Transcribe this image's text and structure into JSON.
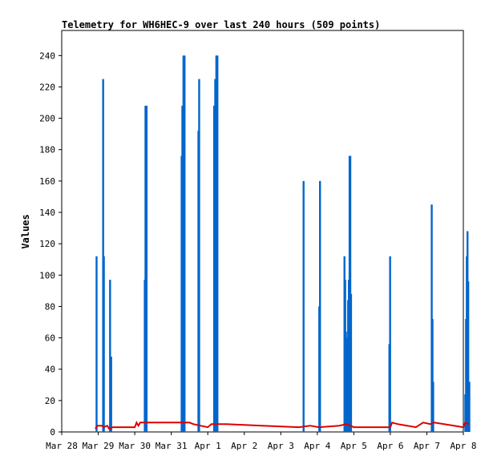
{
  "chart_data": {
    "type": "bar",
    "title": "Telemetry for WH6HEC-9 over last 240 hours (509 points)",
    "xlabel": "",
    "ylabel": "Values",
    "x_ticks": [
      "Mar 28",
      "Mar 29",
      "Mar 30",
      "Mar 31",
      "Apr 1",
      "Apr 2",
      "Apr 3",
      "Apr 4",
      "Apr 5",
      "Apr 6",
      "Apr 7",
      "Apr 8"
    ],
    "y_ticks": [
      "0",
      "20",
      "40",
      "60",
      "80",
      "100",
      "120",
      "140",
      "160",
      "180",
      "200",
      "220",
      "240"
    ],
    "xlim_days": [
      0,
      11
    ],
    "ylim": [
      0,
      256
    ],
    "grid": false,
    "legend": "none",
    "series": [
      {
        "kind": "bars",
        "color": "#0066cc",
        "points": [
          [
            0.95,
            112
          ],
          [
            1.13,
            225
          ],
          [
            1.15,
            112
          ],
          [
            1.32,
            97
          ],
          [
            1.34,
            48
          ],
          [
            1.35,
            48
          ],
          [
            2.27,
            97
          ],
          [
            2.29,
            208
          ],
          [
            2.32,
            208
          ],
          [
            3.28,
            176
          ],
          [
            3.3,
            208
          ],
          [
            3.33,
            240
          ],
          [
            3.36,
            240
          ],
          [
            3.74,
            192
          ],
          [
            3.76,
            225
          ],
          [
            4.17,
            208
          ],
          [
            4.2,
            225
          ],
          [
            4.23,
            240
          ],
          [
            4.26,
            240
          ],
          [
            6.62,
            160
          ],
          [
            7.05,
            80
          ],
          [
            7.07,
            160
          ],
          [
            7.74,
            112
          ],
          [
            7.76,
            97
          ],
          [
            7.78,
            64
          ],
          [
            7.8,
            60
          ],
          [
            7.82,
            36
          ],
          [
            7.84,
            84
          ],
          [
            7.86,
            97
          ],
          [
            7.88,
            176
          ],
          [
            7.9,
            176
          ],
          [
            7.92,
            88
          ],
          [
            8.97,
            56
          ],
          [
            8.99,
            112
          ],
          [
            10.13,
            145
          ],
          [
            10.15,
            72
          ],
          [
            10.17,
            32
          ],
          [
            11.05,
            24
          ],
          [
            11.07,
            72
          ],
          [
            11.09,
            112
          ],
          [
            11.11,
            128
          ],
          [
            11.13,
            96
          ],
          [
            11.16,
            32
          ]
        ]
      },
      {
        "kind": "line",
        "color": "#dd0000",
        "points": [
          [
            0.92,
            2
          ],
          [
            0.98,
            4
          ],
          [
            1.1,
            4
          ],
          [
            1.15,
            3
          ],
          [
            1.25,
            4
          ],
          [
            1.3,
            2
          ],
          [
            1.4,
            3
          ],
          [
            2.0,
            3
          ],
          [
            2.05,
            6
          ],
          [
            2.1,
            4
          ],
          [
            2.15,
            6
          ],
          [
            3.5,
            6
          ],
          [
            3.6,
            5
          ],
          [
            3.8,
            4
          ],
          [
            4.0,
            3
          ],
          [
            4.1,
            5
          ],
          [
            4.5,
            5
          ],
          [
            5.5,
            4
          ],
          [
            6.5,
            3
          ],
          [
            6.8,
            4
          ],
          [
            7.05,
            3
          ],
          [
            7.6,
            4
          ],
          [
            7.8,
            5
          ],
          [
            8.0,
            3
          ],
          [
            9.0,
            3
          ],
          [
            9.05,
            6
          ],
          [
            9.2,
            5
          ],
          [
            9.7,
            3
          ],
          [
            9.9,
            6
          ],
          [
            10.1,
            5
          ],
          [
            10.2,
            6
          ],
          [
            11.0,
            3
          ],
          [
            11.05,
            6
          ],
          [
            11.15,
            5
          ]
        ]
      }
    ]
  }
}
